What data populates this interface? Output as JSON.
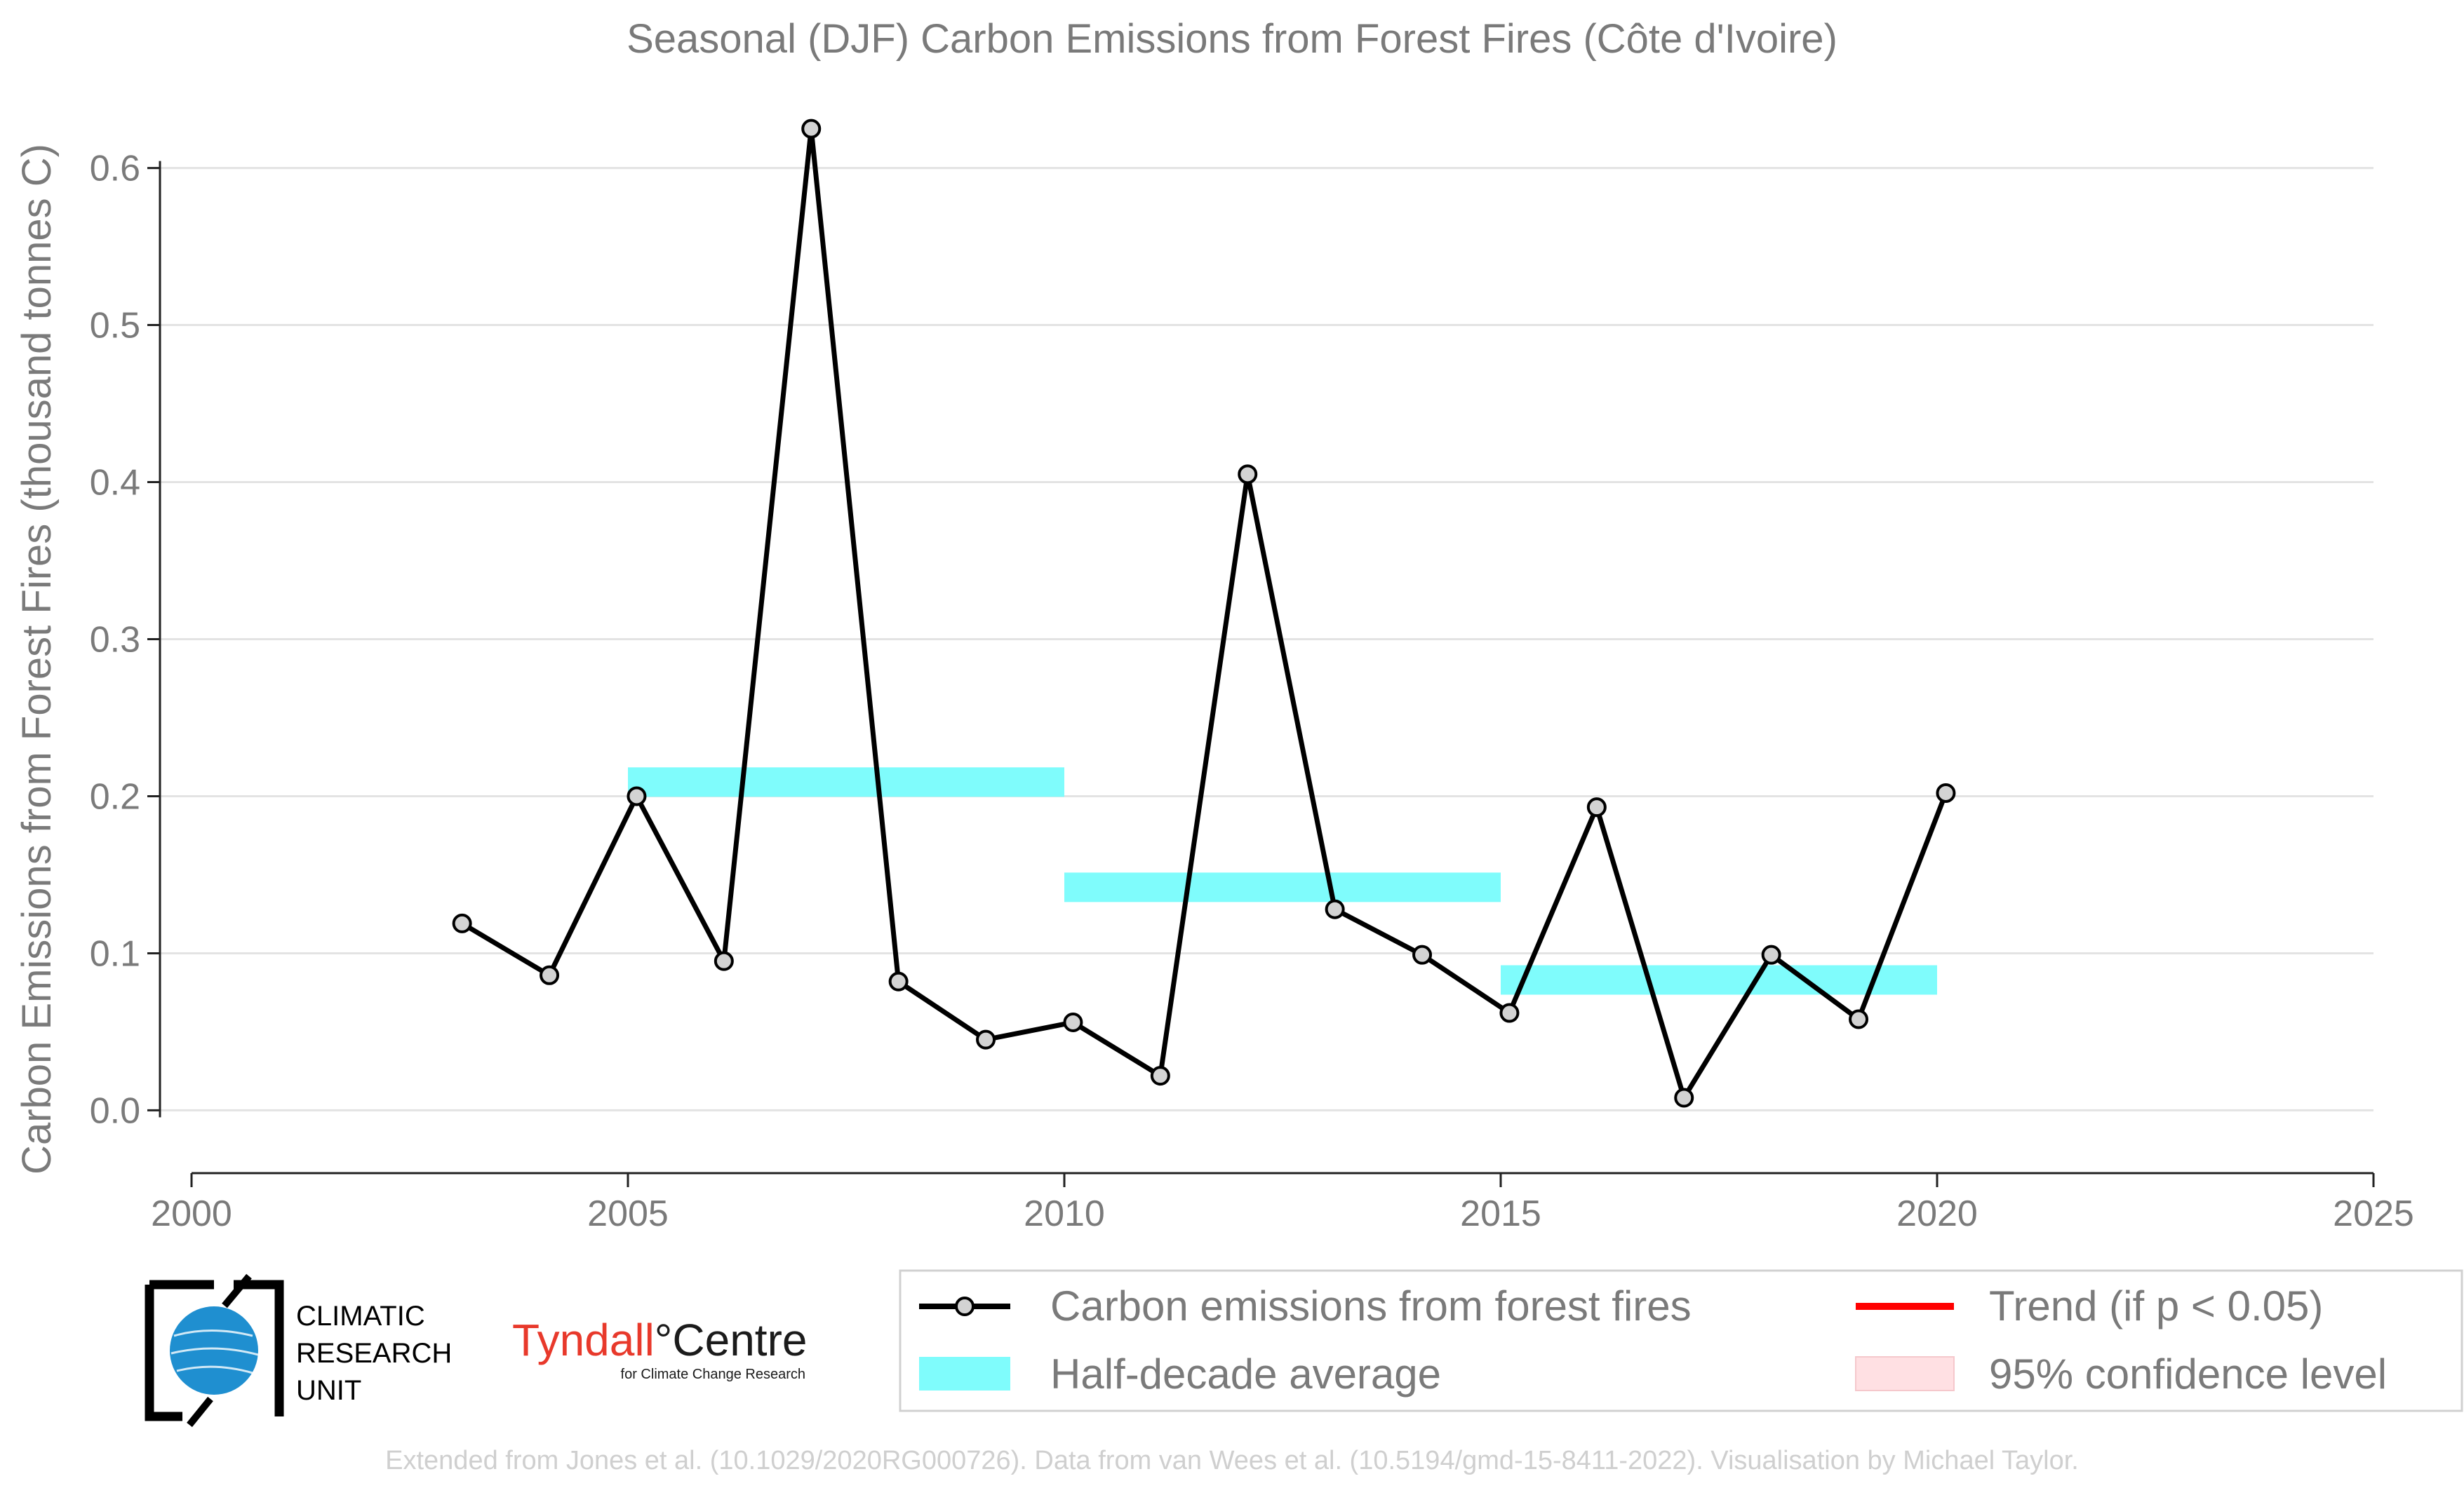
{
  "chart_data": {
    "type": "line",
    "title": "Seasonal (DJF) Carbon Emissions from Forest Fires (Côte d'Ivoire)",
    "xlabel": "",
    "ylabel": "Carbon Emissions from Forest Fires (thousand tonnes C)",
    "xlim": [
      2000,
      2025
    ],
    "ylim": [
      -0.04,
      0.64
    ],
    "xticks": [
      2000,
      2005,
      2010,
      2015,
      2020,
      2025
    ],
    "yticks": [
      0.0,
      0.1,
      0.2,
      0.3,
      0.4,
      0.5,
      0.6
    ],
    "ytick_labels": [
      "0.0",
      "0.1",
      "0.2",
      "0.3",
      "0.4",
      "0.5",
      "0.6"
    ],
    "grid": "horizontal",
    "series": [
      {
        "name": "Carbon emissions from forest fires",
        "color": "#000000",
        "marker_fill": "#d3d3d3",
        "x": [
          2003.1,
          2004.1,
          2005.1,
          2006.1,
          2007.1,
          2008.1,
          2009.1,
          2010.1,
          2011.1,
          2012.1,
          2013.1,
          2014.1,
          2015.1,
          2016.1,
          2017.1,
          2018.1,
          2019.1,
          2020.1
        ],
        "y": [
          0.119,
          0.086,
          0.2,
          0.095,
          0.625,
          0.082,
          0.045,
          0.056,
          0.022,
          0.405,
          0.128,
          0.099,
          0.062,
          0.193,
          0.008,
          0.099,
          0.058,
          0.202
        ]
      }
    ],
    "half_decade_average": {
      "name": "Half-decade average",
      "color": "#7ffcfc",
      "segments": [
        {
          "x0": 2005,
          "x1": 2010,
          "y": 0.209
        },
        {
          "x0": 2010,
          "x1": 2015,
          "y": 0.142
        },
        {
          "x0": 2015,
          "x1": 2020,
          "y": 0.083
        }
      ]
    },
    "legend": {
      "placement": "bottom-right",
      "entries": [
        {
          "label": "Carbon emissions from forest fires",
          "kind": "line-marker",
          "color": "#000000"
        },
        {
          "label": "Trend (if p < 0.05)",
          "kind": "line",
          "color": "#ff0000"
        },
        {
          "label": "Half-decade average",
          "kind": "band",
          "color": "#7ffcfc"
        },
        {
          "label": "95% confidence level",
          "kind": "band",
          "color": "#ffe0e3"
        }
      ]
    }
  },
  "logos": {
    "cru": {
      "line1": "CLIMATIC",
      "line2": "RESEARCH",
      "line3": "UNIT"
    },
    "tyndall": {
      "part1": "Tyndall",
      "part2": "°Centre",
      "sub": "for Climate Change Research"
    }
  },
  "footer": "Extended from Jones et al. (10.1029/2020RG000726). Data from van Wees et al. (10.5194/gmd-15-8411-2022). Visualisation by Michael Taylor."
}
